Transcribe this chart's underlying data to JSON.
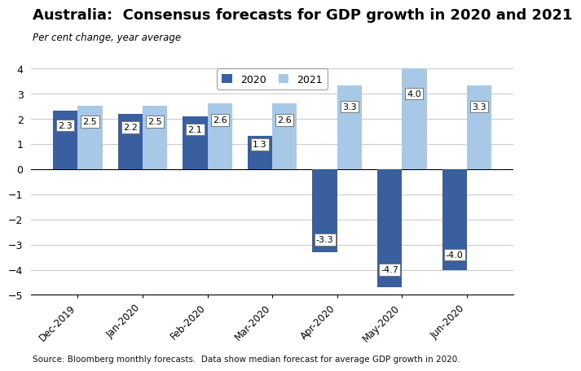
{
  "title": "Australia:  Consensus forecasts for GDP growth in 2020 and 2021",
  "subtitle": "Per cent change, year average",
  "footer": "Source: Bloomberg monthly forecasts.  Data show median forecast for average GDP growth in 2020.",
  "categories": [
    "Dec-2019",
    "Jan-2020",
    "Feb-2020",
    "Mar-2020",
    "Apr-2020",
    "May-2020",
    "Jun-2020"
  ],
  "values_2020": [
    2.3,
    2.2,
    2.1,
    1.3,
    -3.3,
    -4.7,
    -4.0
  ],
  "values_2021": [
    2.5,
    2.5,
    2.6,
    2.6,
    3.3,
    4.0,
    3.3
  ],
  "color_2020": "#3A5FA0",
  "color_2021": "#A8C8E8",
  "ylim": [
    -5,
    4
  ],
  "yticks": [
    -5,
    -4,
    -3,
    -2,
    -1,
    0,
    1,
    2,
    3,
    4
  ],
  "legend_2020": "2020",
  "legend_2021": "2021",
  "bar_width": 0.38,
  "label_fontsize": 8,
  "title_fontsize": 13,
  "subtitle_fontsize": 8.5,
  "footer_fontsize": 7.5
}
